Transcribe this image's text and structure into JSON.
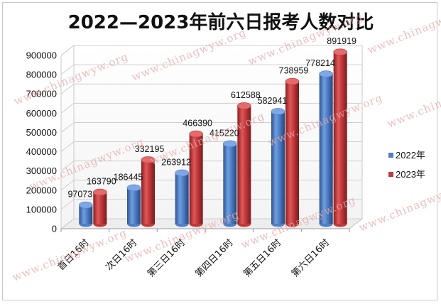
{
  "chart_data": {
    "type": "bar",
    "title": "2022—2023年前六日报考人数对比",
    "categories": [
      "首日16时",
      "次日16时",
      "第三日16时",
      "第四日16时",
      "第五日16时",
      "第六日16时"
    ],
    "series": [
      {
        "name": "2022年",
        "color": "#4f7ec6",
        "values": [
          97073,
          186445,
          263912,
          415220,
          582941,
          778214
        ]
      },
      {
        "name": "2023年",
        "color": "#c0393b",
        "values": [
          163790,
          332195,
          466390,
          612588,
          738959,
          891919
        ]
      }
    ],
    "ylim": [
      0,
      900000
    ],
    "yticks": [
      0,
      100000,
      200000,
      300000,
      400000,
      500000,
      600000,
      700000,
      800000,
      900000
    ],
    "legend_position": "right",
    "style": "3d-cylinder"
  },
  "watermark": "www.chinagwyw.org"
}
